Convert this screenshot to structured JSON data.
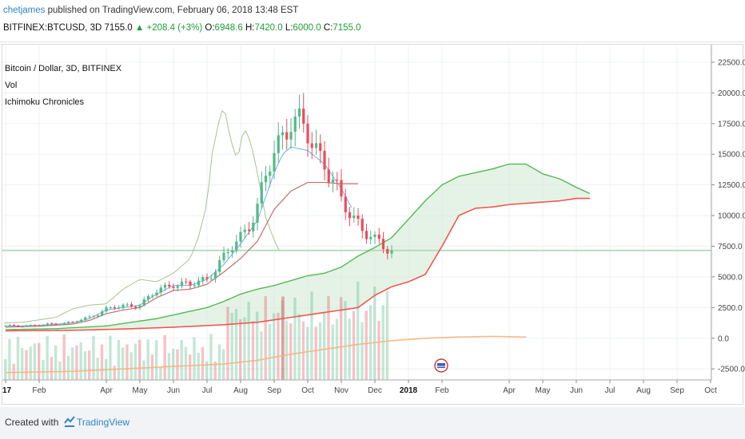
{
  "header": {
    "author": "chetjames",
    "published_text": "published on TradingView.com, February 06, 2018 13:48 EST",
    "symbol": "BITFINEX:BTCUSD, 3D",
    "last": "7155.0",
    "change": "+208.4 (+3%)",
    "open_label": "O:",
    "open": "6948.6",
    "high_label": "H:",
    "high": "7420.0",
    "low_label": "L:",
    "low": "6000.0",
    "close_label": "C:",
    "close": "7155.0"
  },
  "legend": {
    "title": "Bitcoin / Dollar, 3D, BITFINEX",
    "indicator_1": "Vol",
    "indicator_2": "Ichimoku Chronicles"
  },
  "footer": {
    "created_with": "Created with",
    "brand": "TradingView"
  },
  "colors": {
    "bull": "#53b987",
    "bear": "#eb4d5c",
    "tenkan": "#6aaee6",
    "kijun": "#c0706e",
    "lagging": "#a8c28e",
    "span_a": "#53b853",
    "span_b": "#f0584f",
    "cloud": "#cfe9d2",
    "vol_ma": "#f5b37a",
    "price_line": "#b8d9c0"
  },
  "chart_data": {
    "type": "candlestick",
    "title": "Bitcoin / Dollar, 3D, BITFINEX",
    "y_ticks": [
      22500,
      20000,
      17500,
      15000,
      12500,
      10000,
      7500,
      5000,
      2500,
      0,
      -2500
    ],
    "y_tick_labels": [
      "22500.0",
      "20000.0",
      "17500.0",
      "15000.0",
      "12500.0",
      "10000.0",
      "7500.0",
      "5000.0",
      "2500.0",
      "0.0",
      "-2500.0"
    ],
    "ylim": [
      -3400,
      23800
    ],
    "x_labels": [
      "17",
      "Feb",
      "Apr",
      "May",
      "Jun",
      "Jul",
      "Aug",
      "Sep",
      "Oct",
      "Nov",
      "Dec",
      "2018",
      "Feb",
      "Apr",
      "May",
      "Jun",
      "Jul",
      "Aug",
      "Sep",
      "Oct"
    ],
    "x_label_bold": [
      "17",
      "2018"
    ],
    "x_label_months": [
      0,
      1,
      3,
      4,
      5,
      6,
      7,
      8,
      9,
      10,
      11,
      12,
      13,
      15,
      16,
      17,
      18,
      19,
      20,
      21
    ],
    "last_price": 7155.0,
    "price_anchors": [
      [
        0,
        1000
      ],
      [
        1,
        1020
      ],
      [
        2,
        1060
      ],
      [
        3,
        1180
      ],
      [
        4,
        1300
      ],
      [
        5,
        1700
      ],
      [
        6,
        2400
      ],
      [
        7,
        2600
      ],
      [
        8,
        2750
      ],
      [
        9,
        3800
      ],
      [
        10,
        4500
      ],
      [
        11,
        4300
      ],
      [
        12,
        4900
      ],
      [
        13,
        6500
      ],
      [
        14,
        8300
      ],
      [
        15,
        10600
      ],
      [
        16,
        15300
      ],
      [
        17,
        18000
      ],
      [
        18,
        16500
      ],
      [
        19,
        14500
      ],
      [
        20,
        11000
      ],
      [
        21,
        9500
      ],
      [
        22,
        7800
      ],
      [
        23,
        7155
      ]
    ],
    "tenkan_anchors": [
      [
        0,
        980
      ],
      [
        2,
        1040
      ],
      [
        4,
        1250
      ],
      [
        5,
        1600
      ],
      [
        6,
        2300
      ],
      [
        7,
        2500
      ],
      [
        8,
        2700
      ],
      [
        9,
        3600
      ],
      [
        10,
        4300
      ],
      [
        11,
        4300
      ],
      [
        12,
        4800
      ],
      [
        13,
        6000
      ],
      [
        14,
        7700
      ],
      [
        15,
        9600
      ],
      [
        16,
        13500
      ],
      [
        16.5,
        15000
      ],
      [
        17,
        15600
      ],
      [
        18,
        15300
      ],
      [
        19,
        14200
      ],
      [
        20,
        12200
      ],
      [
        20.7,
        10400
      ]
    ],
    "kijun_anchors": [
      [
        0,
        900
      ],
      [
        2,
        980
      ],
      [
        4,
        1150
      ],
      [
        5,
        1450
      ],
      [
        6,
        2000
      ],
      [
        7,
        2300
      ],
      [
        8,
        2500
      ],
      [
        9,
        3300
      ],
      [
        10,
        3900
      ],
      [
        11,
        4000
      ],
      [
        12,
        4400
      ],
      [
        13,
        5400
      ],
      [
        14,
        6500
      ],
      [
        15,
        7900
      ],
      [
        16,
        10500
      ],
      [
        17,
        12000
      ],
      [
        18,
        12700
      ],
      [
        19,
        12700
      ],
      [
        20,
        12600
      ],
      [
        21,
        12600
      ]
    ],
    "lagging_anchors": [
      [
        -2.5,
        1000
      ],
      [
        -1,
        1200
      ],
      [
        1,
        1300
      ],
      [
        3,
        1700
      ],
      [
        4,
        2400
      ],
      [
        5,
        2700
      ],
      [
        6,
        2800
      ],
      [
        7,
        4000
      ],
      [
        8,
        4800
      ],
      [
        9,
        4600
      ],
      [
        10,
        5300
      ],
      [
        11,
        6500
      ],
      [
        11.5,
        8300
      ],
      [
        12,
        11000
      ],
      [
        12.3,
        15000
      ],
      [
        12.7,
        17600
      ],
      [
        13,
        19000
      ],
      [
        13.4,
        16200
      ],
      [
        13.8,
        14500
      ],
      [
        14.2,
        17200
      ],
      [
        14.6,
        16000
      ],
      [
        15,
        13500
      ],
      [
        15.5,
        9800
      ],
      [
        16,
        8000
      ],
      [
        16.3,
        7155
      ]
    ],
    "span_a_anchors": [
      [
        0,
        700
      ],
      [
        3,
        780
      ],
      [
        6,
        1000
      ],
      [
        8,
        1400
      ],
      [
        9,
        1600
      ],
      [
        10,
        1900
      ],
      [
        11,
        2200
      ],
      [
        12,
        2500
      ],
      [
        13,
        3000
      ],
      [
        14,
        3600
      ],
      [
        15,
        4000
      ],
      [
        16,
        4300
      ],
      [
        17,
        4700
      ],
      [
        18,
        5100
      ],
      [
        19,
        5300
      ],
      [
        20,
        5800
      ],
      [
        21,
        6700
      ],
      [
        22,
        7400
      ],
      [
        23,
        8200
      ],
      [
        24,
        9700
      ],
      [
        25,
        11200
      ],
      [
        26,
        12500
      ],
      [
        27,
        13200
      ],
      [
        28,
        13500
      ],
      [
        29,
        13800
      ],
      [
        30,
        14200
      ],
      [
        31,
        14200
      ],
      [
        32,
        13400
      ],
      [
        33,
        13000
      ],
      [
        34,
        12300
      ],
      [
        34.8,
        11800
      ]
    ],
    "span_b_anchors": [
      [
        0,
        600
      ],
      [
        4,
        650
      ],
      [
        7,
        750
      ],
      [
        10,
        900
      ],
      [
        13,
        1100
      ],
      [
        15,
        1300
      ],
      [
        17,
        1700
      ],
      [
        19,
        2100
      ],
      [
        21,
        2500
      ],
      [
        22,
        3500
      ],
      [
        23,
        4200
      ],
      [
        24,
        4600
      ],
      [
        25,
        5200
      ],
      [
        26,
        7500
      ],
      [
        27,
        10000
      ],
      [
        28,
        10600
      ],
      [
        29,
        10700
      ],
      [
        30,
        10900
      ],
      [
        31,
        11000
      ],
      [
        32,
        11100
      ],
      [
        33,
        11200
      ],
      [
        34,
        11400
      ],
      [
        34.8,
        11400
      ]
    ],
    "volume_ma_anchors": [
      [
        0,
        -2800
      ],
      [
        4,
        -2700
      ],
      [
        7,
        -2500
      ],
      [
        10,
        -2300
      ],
      [
        13,
        -2100
      ],
      [
        15,
        -1800
      ],
      [
        17,
        -1300
      ],
      [
        19,
        -900
      ],
      [
        21,
        -500
      ],
      [
        23,
        -200
      ],
      [
        25,
        0
      ],
      [
        27,
        100
      ],
      [
        29,
        150
      ],
      [
        31,
        100
      ]
    ]
  }
}
